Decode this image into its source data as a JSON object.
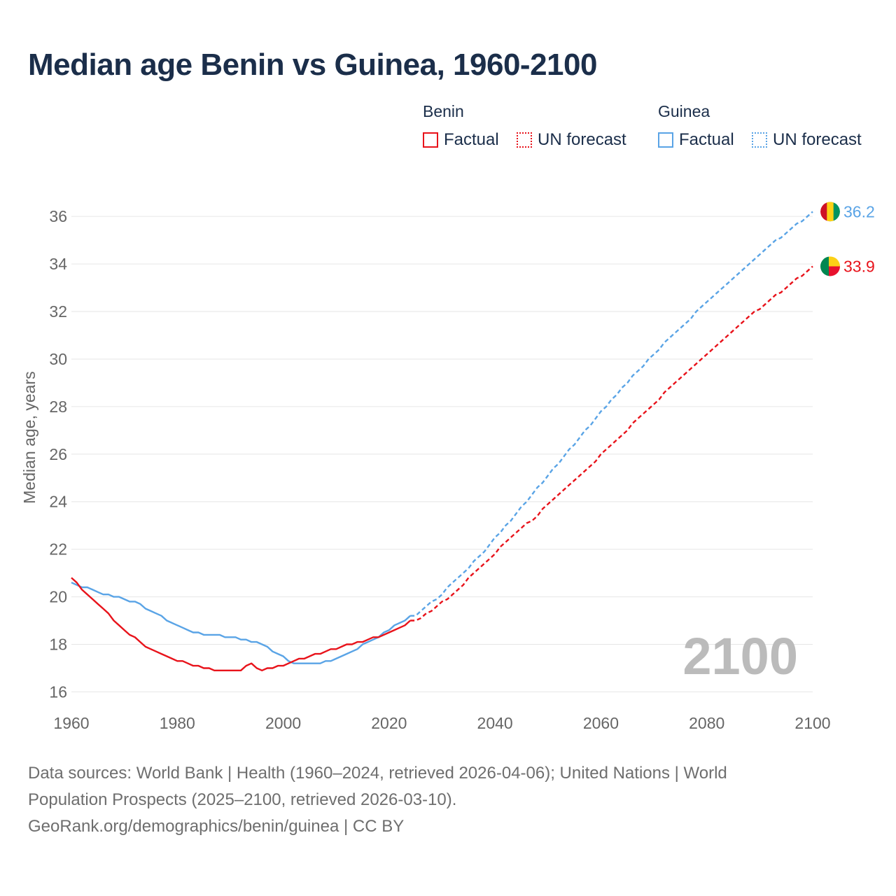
{
  "title": "Median age Benin vs Guinea, 1960-2100",
  "legend": {
    "groups": [
      {
        "name": "Benin",
        "factual_label": "Factual",
        "forecast_label": "UN forecast",
        "color": "#e8131b"
      },
      {
        "name": "Guinea",
        "factual_label": "Factual",
        "forecast_label": "UN forecast",
        "color": "#5aa4e6"
      }
    ]
  },
  "year_watermark": "2100",
  "footer": {
    "line1": "Data sources: World Bank | Health (1960–2024, retrieved 2026-04-06); United Nations | World",
    "line2": "Population Prospects (2025–2100, retrieved 2026-03-10).",
    "line3": "GeoRank.org/demographics/benin/guinea | CC BY"
  },
  "chart_data": {
    "type": "line",
    "title": "Median age Benin vs Guinea, 1960-2100",
    "xlabel": "",
    "ylabel": "Median age, years",
    "xlim": [
      1960,
      2100
    ],
    "ylim": [
      15.6,
      36.8
    ],
    "x_ticks": [
      1960,
      1980,
      2000,
      2020,
      2040,
      2060,
      2080,
      2100
    ],
    "y_ticks": [
      16,
      18,
      20,
      22,
      24,
      26,
      28,
      30,
      32,
      34,
      36
    ],
    "grid": true,
    "legend_position": "top-right",
    "series": [
      {
        "name": "Benin",
        "color": "#e8131b",
        "end_label": "33.9",
        "factual": [
          [
            1960,
            20.8
          ],
          [
            1961,
            20.6
          ],
          [
            1962,
            20.3
          ],
          [
            1963,
            20.1
          ],
          [
            1964,
            19.9
          ],
          [
            1965,
            19.7
          ],
          [
            1966,
            19.5
          ],
          [
            1967,
            19.3
          ],
          [
            1968,
            19.0
          ],
          [
            1969,
            18.8
          ],
          [
            1970,
            18.6
          ],
          [
            1971,
            18.4
          ],
          [
            1972,
            18.3
          ],
          [
            1973,
            18.1
          ],
          [
            1974,
            17.9
          ],
          [
            1975,
            17.8
          ],
          [
            1976,
            17.7
          ],
          [
            1977,
            17.6
          ],
          [
            1978,
            17.5
          ],
          [
            1979,
            17.4
          ],
          [
            1980,
            17.3
          ],
          [
            1981,
            17.3
          ],
          [
            1982,
            17.2
          ],
          [
            1983,
            17.1
          ],
          [
            1984,
            17.1
          ],
          [
            1985,
            17.0
          ],
          [
            1986,
            17.0
          ],
          [
            1987,
            16.9
          ],
          [
            1988,
            16.9
          ],
          [
            1989,
            16.9
          ],
          [
            1990,
            16.9
          ],
          [
            1991,
            16.9
          ],
          [
            1992,
            16.9
          ],
          [
            1993,
            17.1
          ],
          [
            1994,
            17.2
          ],
          [
            1995,
            17.0
          ],
          [
            1996,
            16.9
          ],
          [
            1997,
            17.0
          ],
          [
            1998,
            17.0
          ],
          [
            1999,
            17.1
          ],
          [
            2000,
            17.1
          ],
          [
            2001,
            17.2
          ],
          [
            2002,
            17.3
          ],
          [
            2003,
            17.4
          ],
          [
            2004,
            17.4
          ],
          [
            2005,
            17.5
          ],
          [
            2006,
            17.6
          ],
          [
            2007,
            17.6
          ],
          [
            2008,
            17.7
          ],
          [
            2009,
            17.8
          ],
          [
            2010,
            17.8
          ],
          [
            2011,
            17.9
          ],
          [
            2012,
            18.0
          ],
          [
            2013,
            18.0
          ],
          [
            2014,
            18.1
          ],
          [
            2015,
            18.1
          ],
          [
            2016,
            18.2
          ],
          [
            2017,
            18.3
          ],
          [
            2018,
            18.3
          ],
          [
            2019,
            18.4
          ],
          [
            2020,
            18.5
          ],
          [
            2021,
            18.6
          ],
          [
            2022,
            18.7
          ],
          [
            2023,
            18.8
          ],
          [
            2024,
            19.0
          ]
        ],
        "forecast": [
          [
            2024,
            19.0
          ],
          [
            2025,
            19.0
          ],
          [
            2026,
            19.1
          ],
          [
            2027,
            19.3
          ],
          [
            2028,
            19.4
          ],
          [
            2029,
            19.6
          ],
          [
            2030,
            19.8
          ],
          [
            2031,
            19.9
          ],
          [
            2032,
            20.1
          ],
          [
            2033,
            20.3
          ],
          [
            2034,
            20.5
          ],
          [
            2035,
            20.8
          ],
          [
            2036,
            21.0
          ],
          [
            2037,
            21.2
          ],
          [
            2038,
            21.4
          ],
          [
            2039,
            21.6
          ],
          [
            2040,
            21.8
          ],
          [
            2041,
            22.1
          ],
          [
            2042,
            22.3
          ],
          [
            2043,
            22.5
          ],
          [
            2044,
            22.7
          ],
          [
            2045,
            22.9
          ],
          [
            2046,
            23.1
          ],
          [
            2047,
            23.2
          ],
          [
            2048,
            23.4
          ],
          [
            2049,
            23.7
          ],
          [
            2050,
            23.9
          ],
          [
            2051,
            24.1
          ],
          [
            2052,
            24.3
          ],
          [
            2053,
            24.5
          ],
          [
            2054,
            24.7
          ],
          [
            2055,
            24.9
          ],
          [
            2056,
            25.1
          ],
          [
            2057,
            25.3
          ],
          [
            2058,
            25.5
          ],
          [
            2059,
            25.7
          ],
          [
            2060,
            26.0
          ],
          [
            2061,
            26.2
          ],
          [
            2062,
            26.4
          ],
          [
            2063,
            26.6
          ],
          [
            2064,
            26.8
          ],
          [
            2065,
            27.0
          ],
          [
            2066,
            27.3
          ],
          [
            2067,
            27.5
          ],
          [
            2068,
            27.7
          ],
          [
            2069,
            27.9
          ],
          [
            2070,
            28.1
          ],
          [
            2071,
            28.3
          ],
          [
            2072,
            28.6
          ],
          [
            2073,
            28.8
          ],
          [
            2074,
            29.0
          ],
          [
            2075,
            29.2
          ],
          [
            2076,
            29.4
          ],
          [
            2077,
            29.6
          ],
          [
            2078,
            29.8
          ],
          [
            2079,
            30.0
          ],
          [
            2080,
            30.2
          ],
          [
            2081,
            30.4
          ],
          [
            2082,
            30.6
          ],
          [
            2083,
            30.8
          ],
          [
            2084,
            31.0
          ],
          [
            2085,
            31.2
          ],
          [
            2086,
            31.4
          ],
          [
            2087,
            31.6
          ],
          [
            2088,
            31.8
          ],
          [
            2089,
            32.0
          ],
          [
            2090,
            32.1
          ],
          [
            2091,
            32.3
          ],
          [
            2092,
            32.5
          ],
          [
            2093,
            32.7
          ],
          [
            2094,
            32.8
          ],
          [
            2095,
            33.0
          ],
          [
            2096,
            33.2
          ],
          [
            2097,
            33.4
          ],
          [
            2098,
            33.5
          ],
          [
            2099,
            33.7
          ],
          [
            2100,
            33.9
          ]
        ]
      },
      {
        "name": "Guinea",
        "color": "#5aa4e6",
        "end_label": "36.2",
        "factual": [
          [
            1960,
            20.6
          ],
          [
            1961,
            20.5
          ],
          [
            1962,
            20.4
          ],
          [
            1963,
            20.4
          ],
          [
            1964,
            20.3
          ],
          [
            1965,
            20.2
          ],
          [
            1966,
            20.1
          ],
          [
            1967,
            20.1
          ],
          [
            1968,
            20.0
          ],
          [
            1969,
            20.0
          ],
          [
            1970,
            19.9
          ],
          [
            1971,
            19.8
          ],
          [
            1972,
            19.8
          ],
          [
            1973,
            19.7
          ],
          [
            1974,
            19.5
          ],
          [
            1975,
            19.4
          ],
          [
            1976,
            19.3
          ],
          [
            1977,
            19.2
          ],
          [
            1978,
            19.0
          ],
          [
            1979,
            18.9
          ],
          [
            1980,
            18.8
          ],
          [
            1981,
            18.7
          ],
          [
            1982,
            18.6
          ],
          [
            1983,
            18.5
          ],
          [
            1984,
            18.5
          ],
          [
            1985,
            18.4
          ],
          [
            1986,
            18.4
          ],
          [
            1987,
            18.4
          ],
          [
            1988,
            18.4
          ],
          [
            1989,
            18.3
          ],
          [
            1990,
            18.3
          ],
          [
            1991,
            18.3
          ],
          [
            1992,
            18.2
          ],
          [
            1993,
            18.2
          ],
          [
            1994,
            18.1
          ],
          [
            1995,
            18.1
          ],
          [
            1996,
            18.0
          ],
          [
            1997,
            17.9
          ],
          [
            1998,
            17.7
          ],
          [
            1999,
            17.6
          ],
          [
            2000,
            17.5
          ],
          [
            2001,
            17.3
          ],
          [
            2002,
            17.2
          ],
          [
            2003,
            17.2
          ],
          [
            2004,
            17.2
          ],
          [
            2005,
            17.2
          ],
          [
            2006,
            17.2
          ],
          [
            2007,
            17.2
          ],
          [
            2008,
            17.3
          ],
          [
            2009,
            17.3
          ],
          [
            2010,
            17.4
          ],
          [
            2011,
            17.5
          ],
          [
            2012,
            17.6
          ],
          [
            2013,
            17.7
          ],
          [
            2014,
            17.8
          ],
          [
            2015,
            18.0
          ],
          [
            2016,
            18.1
          ],
          [
            2017,
            18.2
          ],
          [
            2018,
            18.3
          ],
          [
            2019,
            18.5
          ],
          [
            2020,
            18.6
          ],
          [
            2021,
            18.8
          ],
          [
            2022,
            18.9
          ],
          [
            2023,
            19.0
          ],
          [
            2024,
            19.2
          ]
        ],
        "forecast": [
          [
            2024,
            19.2
          ],
          [
            2025,
            19.2
          ],
          [
            2026,
            19.4
          ],
          [
            2027,
            19.6
          ],
          [
            2028,
            19.8
          ],
          [
            2029,
            19.9
          ],
          [
            2030,
            20.1
          ],
          [
            2031,
            20.4
          ],
          [
            2032,
            20.6
          ],
          [
            2033,
            20.8
          ],
          [
            2034,
            21.0
          ],
          [
            2035,
            21.2
          ],
          [
            2036,
            21.5
          ],
          [
            2037,
            21.7
          ],
          [
            2038,
            21.9
          ],
          [
            2039,
            22.2
          ],
          [
            2040,
            22.5
          ],
          [
            2041,
            22.7
          ],
          [
            2042,
            23.0
          ],
          [
            2043,
            23.2
          ],
          [
            2044,
            23.5
          ],
          [
            2045,
            23.8
          ],
          [
            2046,
            24.0
          ],
          [
            2047,
            24.3
          ],
          [
            2048,
            24.6
          ],
          [
            2049,
            24.8
          ],
          [
            2050,
            25.1
          ],
          [
            2051,
            25.4
          ],
          [
            2052,
            25.6
          ],
          [
            2053,
            25.9
          ],
          [
            2054,
            26.2
          ],
          [
            2055,
            26.4
          ],
          [
            2056,
            26.7
          ],
          [
            2057,
            27.0
          ],
          [
            2058,
            27.2
          ],
          [
            2059,
            27.5
          ],
          [
            2060,
            27.8
          ],
          [
            2061,
            28.0
          ],
          [
            2062,
            28.3
          ],
          [
            2063,
            28.5
          ],
          [
            2064,
            28.8
          ],
          [
            2065,
            29.0
          ],
          [
            2066,
            29.3
          ],
          [
            2067,
            29.5
          ],
          [
            2068,
            29.7
          ],
          [
            2069,
            30.0
          ],
          [
            2070,
            30.2
          ],
          [
            2071,
            30.4
          ],
          [
            2072,
            30.7
          ],
          [
            2073,
            30.9
          ],
          [
            2074,
            31.1
          ],
          [
            2075,
            31.3
          ],
          [
            2076,
            31.5
          ],
          [
            2077,
            31.7
          ],
          [
            2078,
            32.0
          ],
          [
            2079,
            32.2
          ],
          [
            2080,
            32.4
          ],
          [
            2081,
            32.6
          ],
          [
            2082,
            32.8
          ],
          [
            2083,
            33.0
          ],
          [
            2084,
            33.2
          ],
          [
            2085,
            33.4
          ],
          [
            2086,
            33.6
          ],
          [
            2087,
            33.8
          ],
          [
            2088,
            34.0
          ],
          [
            2089,
            34.2
          ],
          [
            2090,
            34.4
          ],
          [
            2091,
            34.6
          ],
          [
            2092,
            34.8
          ],
          [
            2093,
            35.0
          ],
          [
            2094,
            35.1
          ],
          [
            2095,
            35.3
          ],
          [
            2096,
            35.5
          ],
          [
            2097,
            35.7
          ],
          [
            2098,
            35.8
          ],
          [
            2099,
            36.0
          ],
          [
            2100,
            36.2
          ]
        ]
      }
    ]
  }
}
